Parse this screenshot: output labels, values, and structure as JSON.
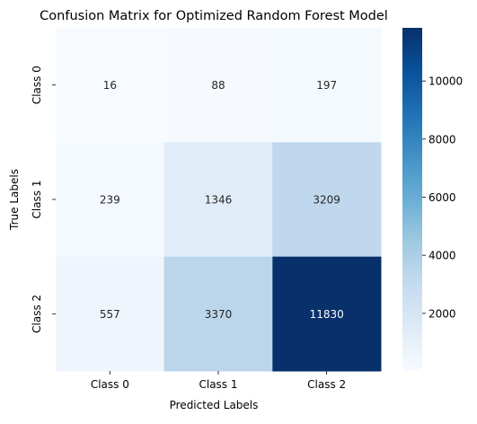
{
  "chart_data": {
    "type": "heatmap",
    "title": "Confusion Matrix for Optimized Random Forest Model",
    "xlabel": "Predicted Labels",
    "ylabel": "True Labels",
    "x_categories": [
      "Class 0",
      "Class 1",
      "Class 2"
    ],
    "y_categories": [
      "Class 0",
      "Class 1",
      "Class 2"
    ],
    "values": [
      [
        16,
        88,
        197
      ],
      [
        239,
        1346,
        3209
      ],
      [
        557,
        3370,
        11830
      ]
    ],
    "colormap": "Blues",
    "color_range": [
      16,
      11830
    ],
    "colorbar_ticks": [
      2000,
      4000,
      6000,
      8000,
      10000
    ],
    "colorbar_tick_labels": [
      "2000",
      "4000",
      "6000",
      "8000",
      "10000"
    ],
    "annotations": true
  }
}
